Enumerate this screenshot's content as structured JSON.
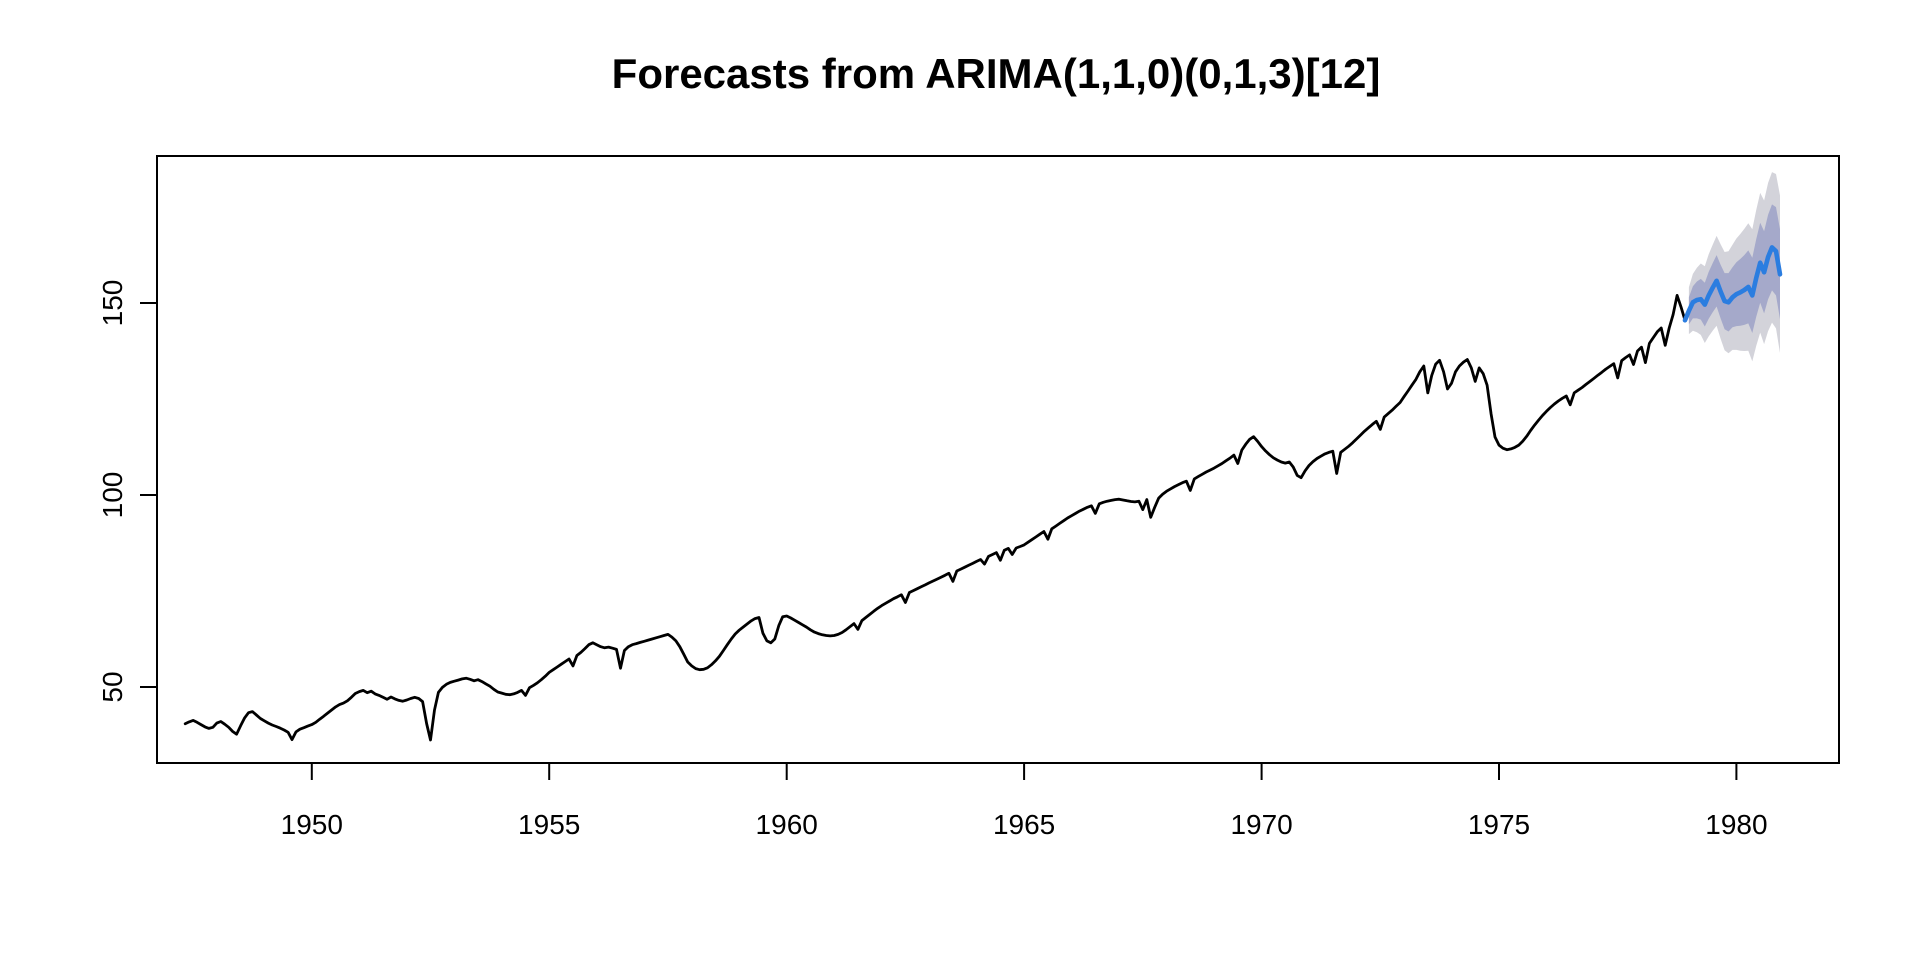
{
  "chart_data": {
    "type": "line",
    "title": "Forecasts from ARIMA(1,1,0)(0,1,3)[12]",
    "xlabel": "",
    "ylabel": "",
    "grid": false,
    "legend": "none",
    "x_ticks": [
      1950,
      1955,
      1960,
      1965,
      1970,
      1975,
      1980
    ],
    "y_ticks": [
      50,
      100,
      150
    ],
    "xlim": [
      1946.74,
      1982.16
    ],
    "ylim": [
      30.2,
      188.3
    ],
    "colors": {
      "observed": "#000000",
      "forecast": "#2b7de0",
      "interval80": "#a5a9ca",
      "interval95": "#d3d3da",
      "axis": "#000000",
      "background": "#ffffff"
    },
    "series": [
      {
        "name": "observed",
        "role": "observed",
        "color_key": "observed",
        "start": 1947.3333,
        "frequency": 12,
        "width": 2.8,
        "values": [
          40.4,
          40.9,
          41.3,
          40.8,
          40.2,
          39.6,
          39.2,
          39.5,
          40.6,
          41.0,
          40.3,
          39.5,
          38.4,
          37.7,
          39.9,
          41.9,
          43.3,
          43.6,
          42.7,
          41.8,
          41.2,
          40.6,
          40.1,
          39.7,
          39.3,
          38.8,
          38.2,
          36.3,
          38.3,
          39.0,
          39.4,
          39.8,
          40.2,
          40.8,
          41.6,
          42.4,
          43.2,
          44.0,
          44.8,
          45.4,
          45.8,
          46.4,
          47.3,
          48.3,
          48.8,
          49.1,
          48.5,
          48.9,
          48.2,
          47.8,
          47.3,
          46.8,
          47.4,
          46.9,
          46.5,
          46.3,
          46.6,
          47.0,
          47.3,
          47.0,
          46.2,
          40.5,
          36.2,
          44.0,
          48.6,
          49.9,
          50.7,
          51.2,
          51.5,
          51.8,
          52.1,
          52.3,
          52.0,
          51.6,
          51.9,
          51.4,
          50.8,
          50.2,
          49.4,
          48.7,
          48.4,
          48.1,
          48.0,
          48.2,
          48.6,
          49.1,
          47.8,
          49.8,
          50.4,
          51.1,
          51.9,
          52.8,
          53.8,
          54.5,
          55.2,
          55.9,
          56.6,
          57.3,
          55.5,
          58.2,
          59.0,
          60.0,
          61.0,
          61.5,
          61.0,
          60.5,
          60.2,
          60.4,
          60.1,
          59.8,
          54.9,
          59.5,
          60.5,
          61.0,
          61.3,
          61.6,
          61.9,
          62.2,
          62.5,
          62.8,
          63.1,
          63.4,
          63.7,
          63.0,
          62.0,
          60.5,
          58.5,
          56.5,
          55.5,
          54.8,
          54.5,
          54.6,
          55.0,
          55.8,
          56.8,
          58.0,
          59.5,
          61.0,
          62.5,
          63.8,
          64.8,
          65.6,
          66.4,
          67.2,
          67.8,
          68.1,
          64.0,
          62.0,
          61.5,
          62.5,
          66.0,
          68.3,
          68.5,
          68.0,
          67.4,
          66.8,
          66.2,
          65.6,
          64.9,
          64.3,
          63.9,
          63.6,
          63.4,
          63.3,
          63.4,
          63.7,
          64.2,
          64.9,
          65.7,
          66.5,
          65.0,
          67.3,
          68.1,
          68.9,
          69.7,
          70.5,
          71.2,
          71.8,
          72.4,
          73.0,
          73.5,
          74.0,
          72.0,
          74.6,
          75.1,
          75.6,
          76.1,
          76.6,
          77.1,
          77.6,
          78.1,
          78.6,
          79.1,
          79.6,
          77.5,
          80.2,
          80.7,
          81.2,
          81.7,
          82.2,
          82.7,
          83.2,
          82.0,
          84.0,
          84.5,
          85.0,
          83.0,
          85.6,
          86.1,
          84.5,
          86.2,
          86.6,
          87.0,
          87.7,
          88.4,
          89.1,
          89.8,
          90.5,
          88.5,
          91.2,
          91.9,
          92.6,
          93.3,
          94.0,
          94.6,
          95.2,
          95.8,
          96.3,
          96.8,
          97.2,
          95.2,
          97.7,
          98.1,
          98.4,
          98.6,
          98.8,
          98.9,
          98.7,
          98.5,
          98.3,
          98.2,
          98.4,
          96.2,
          98.8,
          94.2,
          96.8,
          99.2,
          100.2,
          101.0,
          101.6,
          102.2,
          102.7,
          103.2,
          103.6,
          101.2,
          104.2,
          104.8,
          105.4,
          106.0,
          106.5,
          107.0,
          107.6,
          108.2,
          108.9,
          109.6,
          110.4,
          108.2,
          111.7,
          113.2,
          114.5,
          115.2,
          114.0,
          112.6,
          111.5,
          110.5,
          109.7,
          109.1,
          108.6,
          108.3,
          108.6,
          107.3,
          105.1,
          104.5,
          106.3,
          107.7,
          108.7,
          109.5,
          110.1,
          110.7,
          111.1,
          111.4,
          105.6,
          111.1,
          111.9,
          112.7,
          113.6,
          114.6,
          115.6,
          116.6,
          117.5,
          118.4,
          119.2,
          117.1,
          120.3,
          121.2,
          122.1,
          123.1,
          124.1,
          125.6,
          127.1,
          128.6,
          130.1,
          132.1,
          133.6,
          126.6,
          131.1,
          134.1,
          135.1,
          132.1,
          127.6,
          129.1,
          132.1,
          133.6,
          134.6,
          135.3,
          133.1,
          129.6,
          133.1,
          131.6,
          128.6,
          121.1,
          115.1,
          113.0,
          112.2,
          111.8,
          112.0,
          112.4,
          113.0,
          114.0,
          115.3,
          116.8,
          118.2,
          119.5,
          120.7,
          121.8,
          122.8,
          123.7,
          124.5,
          125.2,
          125.8,
          123.5,
          126.6,
          127.3,
          128.0,
          128.8,
          129.6,
          130.4,
          131.2,
          132.0,
          132.8,
          133.5,
          134.2,
          130.5,
          135.0,
          135.8,
          136.5,
          134.0,
          137.5,
          138.5,
          134.5,
          139.5,
          141.0,
          142.5,
          143.5,
          139.0,
          143.5,
          147.0,
          152.0,
          149.0,
          145.5
        ]
      },
      {
        "name": "forecast-mean",
        "role": "forecast",
        "color_key": "forecast",
        "start": 1978.9167,
        "frequency": 12,
        "width": 4.6,
        "values": [
          145.5,
          148.0,
          150.2,
          150.8,
          151.0,
          149.6,
          152.0,
          154.0,
          155.8,
          153.0,
          150.5,
          150.2,
          151.5,
          152.3,
          152.8,
          153.4,
          154.2,
          152.0,
          156.5,
          160.5,
          158.0,
          162.0,
          164.5,
          163.5,
          157.5
        ]
      }
    ],
    "intervals": [
      {
        "level": 95,
        "color_key": "interval95",
        "start": 1979.0,
        "frequency": 12,
        "lower": [
          141.9,
          142.8,
          142.4,
          141.7,
          139.6,
          141.3,
          142.8,
          144.1,
          140.7,
          137.7,
          136.9,
          137.8,
          137.8,
          137.6,
          137.5,
          137.6,
          134.8,
          138.8,
          142.3,
          139.3,
          142.7,
          144.9,
          143.4,
          137.0
        ],
        "upper": [
          154.1,
          157.6,
          159.2,
          160.3,
          159.6,
          162.7,
          165.2,
          167.5,
          165.3,
          163.3,
          163.5,
          165.2,
          166.8,
          168.0,
          169.3,
          170.8,
          169.2,
          174.2,
          178.7,
          176.7,
          181.3,
          184.1,
          183.6,
          178.0
        ]
      },
      {
        "level": 80,
        "color_key": "interval80",
        "start": 1979.0,
        "frequency": 12,
        "lower": [
          144.5,
          146.0,
          146.0,
          145.7,
          143.9,
          145.9,
          147.6,
          149.1,
          146.0,
          143.2,
          142.6,
          143.7,
          144.0,
          144.1,
          144.3,
          144.7,
          142.2,
          146.4,
          150.1,
          147.3,
          151.0,
          153.3,
          152.0,
          145.8
        ],
        "upper": [
          151.5,
          154.4,
          155.6,
          156.3,
          155.3,
          158.1,
          160.4,
          162.5,
          160.0,
          157.8,
          157.8,
          159.3,
          160.6,
          161.5,
          162.5,
          163.7,
          161.8,
          166.6,
          170.9,
          168.7,
          173.0,
          175.7,
          175.0,
          169.2
        ]
      }
    ]
  }
}
